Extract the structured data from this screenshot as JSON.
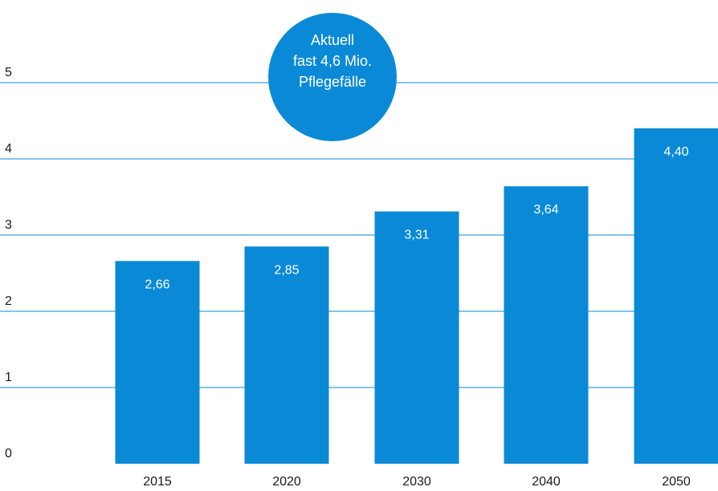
{
  "chart_data": {
    "type": "bar",
    "categories": [
      "2015",
      "2020",
      "2030",
      "2040",
      "2050"
    ],
    "values": [
      2.66,
      2.85,
      3.31,
      3.64,
      4.4
    ],
    "value_labels": [
      "2,66",
      "2,85",
      "3,31",
      "3,64",
      "4,40"
    ],
    "y_ticks": [
      "0",
      "1",
      "2",
      "3",
      "4",
      "5"
    ],
    "ylim": [
      0,
      5
    ],
    "grid": true,
    "title": "",
    "xlabel": "",
    "ylabel": "",
    "bar_color": "#0a8ad6",
    "grid_color": "#0a8ad6",
    "annotation": {
      "lines": [
        "Aktuell",
        "fast 4,6 Mio.",
        "Pflegefälle"
      ],
      "color": "#0a8ad6",
      "shape": "circle"
    }
  }
}
